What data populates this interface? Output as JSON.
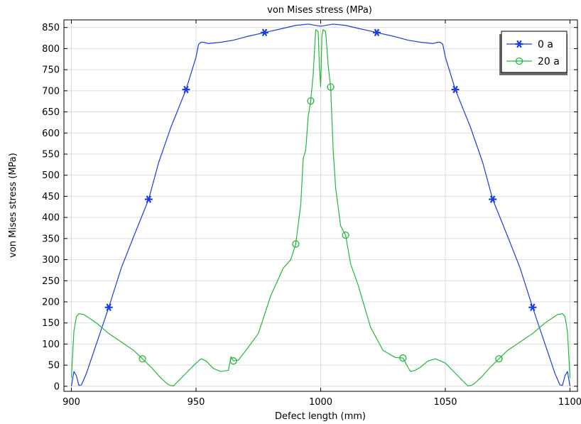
{
  "chart_data": {
    "type": "line",
    "title": "von Mises stress (MPa)",
    "xlabel": "Defect length (mm)",
    "ylabel": "von Mises stress (MPa)",
    "xlim": [
      897,
      1103
    ],
    "ylim": [
      -12,
      868
    ],
    "xticks": [
      900,
      950,
      1000,
      1050,
      1100
    ],
    "yticks": [
      0,
      50,
      100,
      150,
      200,
      250,
      300,
      350,
      400,
      450,
      500,
      550,
      600,
      650,
      700,
      750,
      800,
      850
    ],
    "grid": true,
    "legend": "top-right",
    "series": [
      {
        "name": "0 a",
        "color": "#1a3de0",
        "marker": "asterisk",
        "x": [
          900,
          901,
          902,
          903,
          904,
          906,
          910,
          915,
          920,
          925,
          931,
          935,
          940,
          946,
          950,
          951,
          952,
          953,
          955,
          960,
          965,
          970,
          977.5,
          985,
          990,
          995,
          1000,
          1005,
          1010,
          1015,
          1022.5,
          1030,
          1035,
          1040,
          1045,
          1047,
          1048,
          1049,
          1050,
          1054,
          1060,
          1065,
          1069,
          1075,
          1080,
          1085,
          1090,
          1094,
          1096,
          1097,
          1098,
          1099,
          1100
        ],
        "y": [
          0,
          35,
          25,
          2,
          3,
          30,
          100,
          187,
          280,
          355,
          443,
          530,
          615,
          703,
          780,
          810,
          815,
          815,
          812,
          815,
          820,
          828,
          838,
          848,
          855,
          858,
          853,
          858,
          855,
          848,
          838,
          828,
          820,
          815,
          812,
          815,
          815,
          810,
          780,
          703,
          615,
          530,
          443,
          355,
          280,
          187,
          100,
          30,
          3,
          2,
          25,
          35,
          0
        ],
        "markers_x": [
          915,
          931,
          946,
          977.5,
          1022.5,
          1054,
          1069,
          1085
        ],
        "markers_y": [
          187,
          443,
          703,
          838,
          838,
          703,
          443,
          187
        ]
      },
      {
        "name": "20 a",
        "color": "#22b83a",
        "marker": "circle",
        "x": [
          900,
          901,
          902,
          903,
          905,
          910,
          915,
          920,
          925,
          928.5,
          932,
          935,
          938,
          939.5,
          941,
          945,
          950,
          952,
          954,
          957,
          960,
          963,
          964,
          965,
          967,
          970,
          975,
          980,
          985,
          988,
          990,
          992,
          993,
          994,
          995,
          996,
          997,
          998,
          999,
          999.5,
          1000,
          1000.5,
          1001,
          1002,
          1003,
          1004,
          1005,
          1006,
          1008,
          1010,
          1012,
          1015,
          1020,
          1025,
          1030,
          1033,
          1035,
          1036,
          1038,
          1040,
          1043,
          1046,
          1048,
          1050,
          1055,
          1059,
          1060.5,
          1062,
          1065,
          1068,
          1071.5,
          1075,
          1080,
          1085,
          1090,
          1095,
          1097,
          1098,
          1099,
          1100
        ],
        "y": [
          20,
          130,
          165,
          172,
          170,
          150,
          125,
          105,
          85,
          65,
          45,
          25,
          8,
          2,
          1,
          25,
          55,
          65,
          60,
          42,
          35,
          38,
          70,
          60,
          62,
          85,
          125,
          215,
          280,
          300,
          337,
          430,
          540,
          560,
          640,
          676,
          740,
          845,
          840,
          755,
          710,
          830,
          845,
          840,
          760,
          709,
          560,
          470,
          380,
          358,
          290,
          240,
          140,
          85,
          68,
          67,
          45,
          35,
          38,
          45,
          60,
          65,
          60,
          55,
          25,
          1,
          2,
          8,
          25,
          45,
          65,
          85,
          105,
          125,
          150,
          170,
          172,
          165,
          130,
          20
        ],
        "markers_x": [
          928.5,
          965,
          990,
          996,
          1004,
          1010,
          1033,
          1071.5
        ],
        "markers_y": [
          65,
          60,
          337,
          676,
          709,
          358,
          67,
          65
        ]
      }
    ]
  }
}
